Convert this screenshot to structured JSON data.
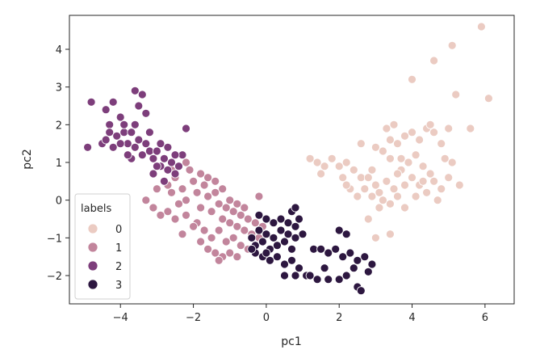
{
  "chart_data": {
    "type": "scatter",
    "title": "",
    "xlabel": "pc1",
    "ylabel": "pc2",
    "xlim": [
      -5.4,
      6.8
    ],
    "ylim": [
      -2.75,
      4.9
    ],
    "xticks": [
      -4,
      -2,
      0,
      2,
      4,
      6
    ],
    "yticks": [
      -2,
      -1,
      0,
      1,
      2,
      3,
      4
    ],
    "xtick_labels": [
      "−4",
      "−2",
      "0",
      "2",
      "4",
      "6"
    ],
    "ytick_labels": [
      "−2",
      "−1",
      "0",
      "1",
      "2",
      "3",
      "4"
    ],
    "grid": false,
    "legend": {
      "title": "labels",
      "location": "lower-left",
      "entries": [
        {
          "label": "0",
          "color": "#ebcbc2"
        },
        {
          "label": "1",
          "color": "#c2859c"
        },
        {
          "label": "2",
          "color": "#7d3e7b"
        },
        {
          "label": "3",
          "color": "#2d1740"
        }
      ]
    },
    "series": [
      {
        "name": "0",
        "color": "#ebcbc2",
        "points": [
          [
            1.2,
            1.1
          ],
          [
            1.4,
            1.0
          ],
          [
            1.6,
            0.9
          ],
          [
            1.8,
            1.1
          ],
          [
            1.5,
            0.7
          ],
          [
            2.0,
            0.9
          ],
          [
            2.2,
            1.0
          ],
          [
            2.1,
            0.6
          ],
          [
            2.4,
            0.8
          ],
          [
            2.6,
            0.6
          ],
          [
            2.3,
            0.3
          ],
          [
            2.5,
            0.1
          ],
          [
            2.7,
            0.3
          ],
          [
            2.8,
            0.6
          ],
          [
            3.0,
            0.4
          ],
          [
            2.9,
            0.1
          ],
          [
            3.1,
            0.2
          ],
          [
            3.3,
            0.5
          ],
          [
            3.5,
            0.3
          ],
          [
            3.2,
            0.0
          ],
          [
            3.4,
            -0.1
          ],
          [
            3.6,
            0.1
          ],
          [
            3.8,
            0.4
          ],
          [
            4.0,
            0.6
          ],
          [
            3.7,
            0.8
          ],
          [
            3.9,
            1.0
          ],
          [
            4.1,
            1.2
          ],
          [
            4.3,
            0.9
          ],
          [
            4.5,
            0.7
          ],
          [
            4.2,
            0.4
          ],
          [
            4.4,
            0.2
          ],
          [
            4.6,
            0.5
          ],
          [
            4.8,
            0.3
          ],
          [
            5.0,
            0.6
          ],
          [
            3.0,
            1.4
          ],
          [
            3.2,
            1.3
          ],
          [
            3.4,
            1.6
          ],
          [
            3.6,
            1.5
          ],
          [
            3.8,
            1.7
          ],
          [
            4.0,
            1.8
          ],
          [
            4.2,
            1.6
          ],
          [
            4.4,
            1.9
          ],
          [
            4.6,
            1.8
          ],
          [
            4.8,
            1.5
          ],
          [
            3.3,
            1.9
          ],
          [
            3.5,
            2.0
          ],
          [
            3.7,
            1.1
          ],
          [
            2.6,
            1.5
          ],
          [
            4.1,
            0.1
          ],
          [
            3.1,
            -0.2
          ],
          [
            2.9,
            0.8
          ],
          [
            3.6,
            0.7
          ],
          [
            4.7,
            0.0
          ],
          [
            5.1,
            1.0
          ],
          [
            5.3,
            0.4
          ],
          [
            4.3,
            0.5
          ],
          [
            3.8,
            -0.2
          ],
          [
            3.4,
            1.1
          ],
          [
            4.9,
            1.1
          ],
          [
            2.2,
            0.4
          ],
          [
            2.8,
            -0.5
          ],
          [
            4.5,
            2.0
          ],
          [
            5.0,
            1.9
          ],
          [
            4.0,
            3.2
          ],
          [
            4.6,
            3.7
          ],
          [
            5.2,
            2.8
          ],
          [
            5.1,
            4.1
          ],
          [
            5.9,
            4.6
          ],
          [
            6.1,
            2.7
          ],
          [
            5.6,
            1.9
          ],
          [
            3.0,
            -1.0
          ],
          [
            3.4,
            -0.9
          ]
        ]
      },
      {
        "name": "1",
        "color": "#c2859c",
        "points": [
          [
            -3.0,
            0.3
          ],
          [
            -2.8,
            0.5
          ],
          [
            -2.6,
            0.2
          ],
          [
            -2.5,
            0.6
          ],
          [
            -2.3,
            0.3
          ],
          [
            -2.4,
            -0.1
          ],
          [
            -2.2,
            0.0
          ],
          [
            -2.0,
            0.5
          ],
          [
            -1.9,
            0.2
          ],
          [
            -1.8,
            -0.2
          ],
          [
            -2.1,
            0.8
          ],
          [
            -1.7,
            0.4
          ],
          [
            -1.6,
            0.1
          ],
          [
            -1.5,
            -0.3
          ],
          [
            -1.4,
            0.2
          ],
          [
            -1.3,
            -0.1
          ],
          [
            -1.2,
            -0.5
          ],
          [
            -1.1,
            -0.2
          ],
          [
            -1.0,
            -0.6
          ],
          [
            -0.9,
            -0.3
          ],
          [
            -0.8,
            -0.7
          ],
          [
            -0.7,
            -0.4
          ],
          [
            -0.6,
            -0.8
          ],
          [
            -0.5,
            -0.5
          ],
          [
            -0.4,
            -0.9
          ],
          [
            -0.3,
            -0.6
          ],
          [
            -0.2,
            -1.0
          ],
          [
            -1.9,
            -0.6
          ],
          [
            -1.7,
            -0.8
          ],
          [
            -1.5,
            -1.0
          ],
          [
            -1.3,
            -0.8
          ],
          [
            -1.1,
            -1.1
          ],
          [
            -0.9,
            -1.0
          ],
          [
            -0.7,
            -1.2
          ],
          [
            -0.5,
            -1.3
          ],
          [
            -2.2,
            -0.4
          ],
          [
            -2.0,
            -0.7
          ],
          [
            -1.8,
            -1.1
          ],
          [
            -1.6,
            -1.3
          ],
          [
            -1.4,
            -1.4
          ],
          [
            -1.2,
            -1.5
          ],
          [
            -2.6,
            0.8
          ],
          [
            -2.4,
            0.9
          ],
          [
            -2.2,
            1.0
          ],
          [
            -1.8,
            0.7
          ],
          [
            -1.6,
            0.6
          ],
          [
            -1.4,
            0.5
          ],
          [
            -1.2,
            0.3
          ],
          [
            -1.0,
            0.0
          ],
          [
            -0.8,
            -0.1
          ],
          [
            -0.6,
            -0.2
          ],
          [
            -3.3,
            0.0
          ],
          [
            -3.1,
            -0.2
          ],
          [
            -2.9,
            -0.4
          ],
          [
            -2.7,
            -0.3
          ],
          [
            -0.1,
            -0.7
          ],
          [
            -0.3,
            -1.2
          ],
          [
            -1.0,
            -1.4
          ],
          [
            -1.3,
            -1.6
          ],
          [
            -0.8,
            -1.5
          ],
          [
            -0.2,
            0.1
          ],
          [
            -2.3,
            -0.9
          ],
          [
            -2.5,
            -0.5
          ],
          [
            -2.7,
            0.4
          ]
        ]
      },
      {
        "name": "2",
        "color": "#7d3e7b",
        "points": [
          [
            -4.9,
            1.4
          ],
          [
            -4.8,
            2.6
          ],
          [
            -4.4,
            2.4
          ],
          [
            -4.2,
            2.6
          ],
          [
            -4.3,
            2.0
          ],
          [
            -4.1,
            1.7
          ],
          [
            -4.0,
            2.2
          ],
          [
            -3.9,
            1.8
          ],
          [
            -4.2,
            1.4
          ],
          [
            -4.5,
            1.5
          ],
          [
            -3.8,
            1.5
          ],
          [
            -3.7,
            1.8
          ],
          [
            -3.6,
            1.4
          ],
          [
            -3.5,
            1.6
          ],
          [
            -3.4,
            1.2
          ],
          [
            -3.3,
            1.5
          ],
          [
            -3.2,
            1.3
          ],
          [
            -3.1,
            1.1
          ],
          [
            -3.0,
            1.3
          ],
          [
            -2.9,
            0.9
          ],
          [
            -2.8,
            1.1
          ],
          [
            -2.7,
            0.8
          ],
          [
            -2.6,
            1.0
          ],
          [
            -2.5,
            0.7
          ],
          [
            -2.4,
            0.9
          ],
          [
            -2.3,
            1.2
          ],
          [
            -3.6,
            2.9
          ],
          [
            -3.4,
            2.8
          ],
          [
            -3.5,
            2.5
          ],
          [
            -3.3,
            2.3
          ],
          [
            -3.9,
            2.0
          ],
          [
            -4.4,
            1.6
          ],
          [
            -3.7,
            1.1
          ],
          [
            -3.1,
            0.7
          ],
          [
            -2.8,
            0.5
          ],
          [
            -2.2,
            1.9
          ],
          [
            -4.0,
            1.5
          ],
          [
            -3.2,
            1.8
          ],
          [
            -2.9,
            1.5
          ],
          [
            -2.5,
            1.2
          ],
          [
            -3.8,
            1.2
          ],
          [
            -4.3,
            1.8
          ],
          [
            -3.6,
            2.0
          ],
          [
            -3.0,
            0.9
          ],
          [
            -2.7,
            1.4
          ]
        ]
      },
      {
        "name": "3",
        "color": "#2d1740",
        "points": [
          [
            -0.4,
            -1.0
          ],
          [
            -0.3,
            -1.2
          ],
          [
            -0.2,
            -0.8
          ],
          [
            -0.1,
            -1.1
          ],
          [
            0.0,
            -0.9
          ],
          [
            0.1,
            -1.3
          ],
          [
            0.2,
            -1.0
          ],
          [
            0.3,
            -1.2
          ],
          [
            0.4,
            -0.8
          ],
          [
            0.5,
            -1.1
          ],
          [
            0.6,
            -0.9
          ],
          [
            0.7,
            -1.3
          ],
          [
            0.8,
            -1.0
          ],
          [
            -0.3,
            -1.4
          ],
          [
            -0.1,
            -1.5
          ],
          [
            0.1,
            -1.6
          ],
          [
            0.3,
            -1.5
          ],
          [
            0.5,
            -1.7
          ],
          [
            0.7,
            -1.6
          ],
          [
            0.9,
            -1.8
          ],
          [
            0.2,
            -0.6
          ],
          [
            0.4,
            -0.5
          ],
          [
            0.6,
            -0.6
          ],
          [
            0.8,
            -0.7
          ],
          [
            0.0,
            -0.5
          ],
          [
            0.7,
            -0.3
          ],
          [
            0.9,
            -0.5
          ],
          [
            1.0,
            -0.9
          ],
          [
            0.5,
            -2.0
          ],
          [
            0.8,
            -2.0
          ],
          [
            1.1,
            -2.0
          ],
          [
            1.4,
            -2.1
          ],
          [
            1.7,
            -2.1
          ],
          [
            2.0,
            -2.1
          ],
          [
            1.3,
            -1.3
          ],
          [
            1.5,
            -1.3
          ],
          [
            1.7,
            -1.4
          ],
          [
            1.9,
            -1.3
          ],
          [
            2.1,
            -1.5
          ],
          [
            2.3,
            -1.4
          ],
          [
            2.5,
            -1.6
          ],
          [
            2.7,
            -1.5
          ],
          [
            2.4,
            -1.8
          ],
          [
            2.2,
            -2.0
          ],
          [
            2.5,
            -2.3
          ],
          [
            2.6,
            -2.4
          ],
          [
            2.8,
            -1.9
          ],
          [
            2.9,
            -1.7
          ],
          [
            2.0,
            -0.8
          ],
          [
            2.2,
            -0.9
          ],
          [
            0.8,
            -0.2
          ],
          [
            -0.2,
            -0.4
          ],
          [
            -0.4,
            -1.3
          ],
          [
            0.0,
            -1.4
          ],
          [
            1.2,
            -2.0
          ],
          [
            1.6,
            -1.8
          ]
        ]
      }
    ]
  }
}
